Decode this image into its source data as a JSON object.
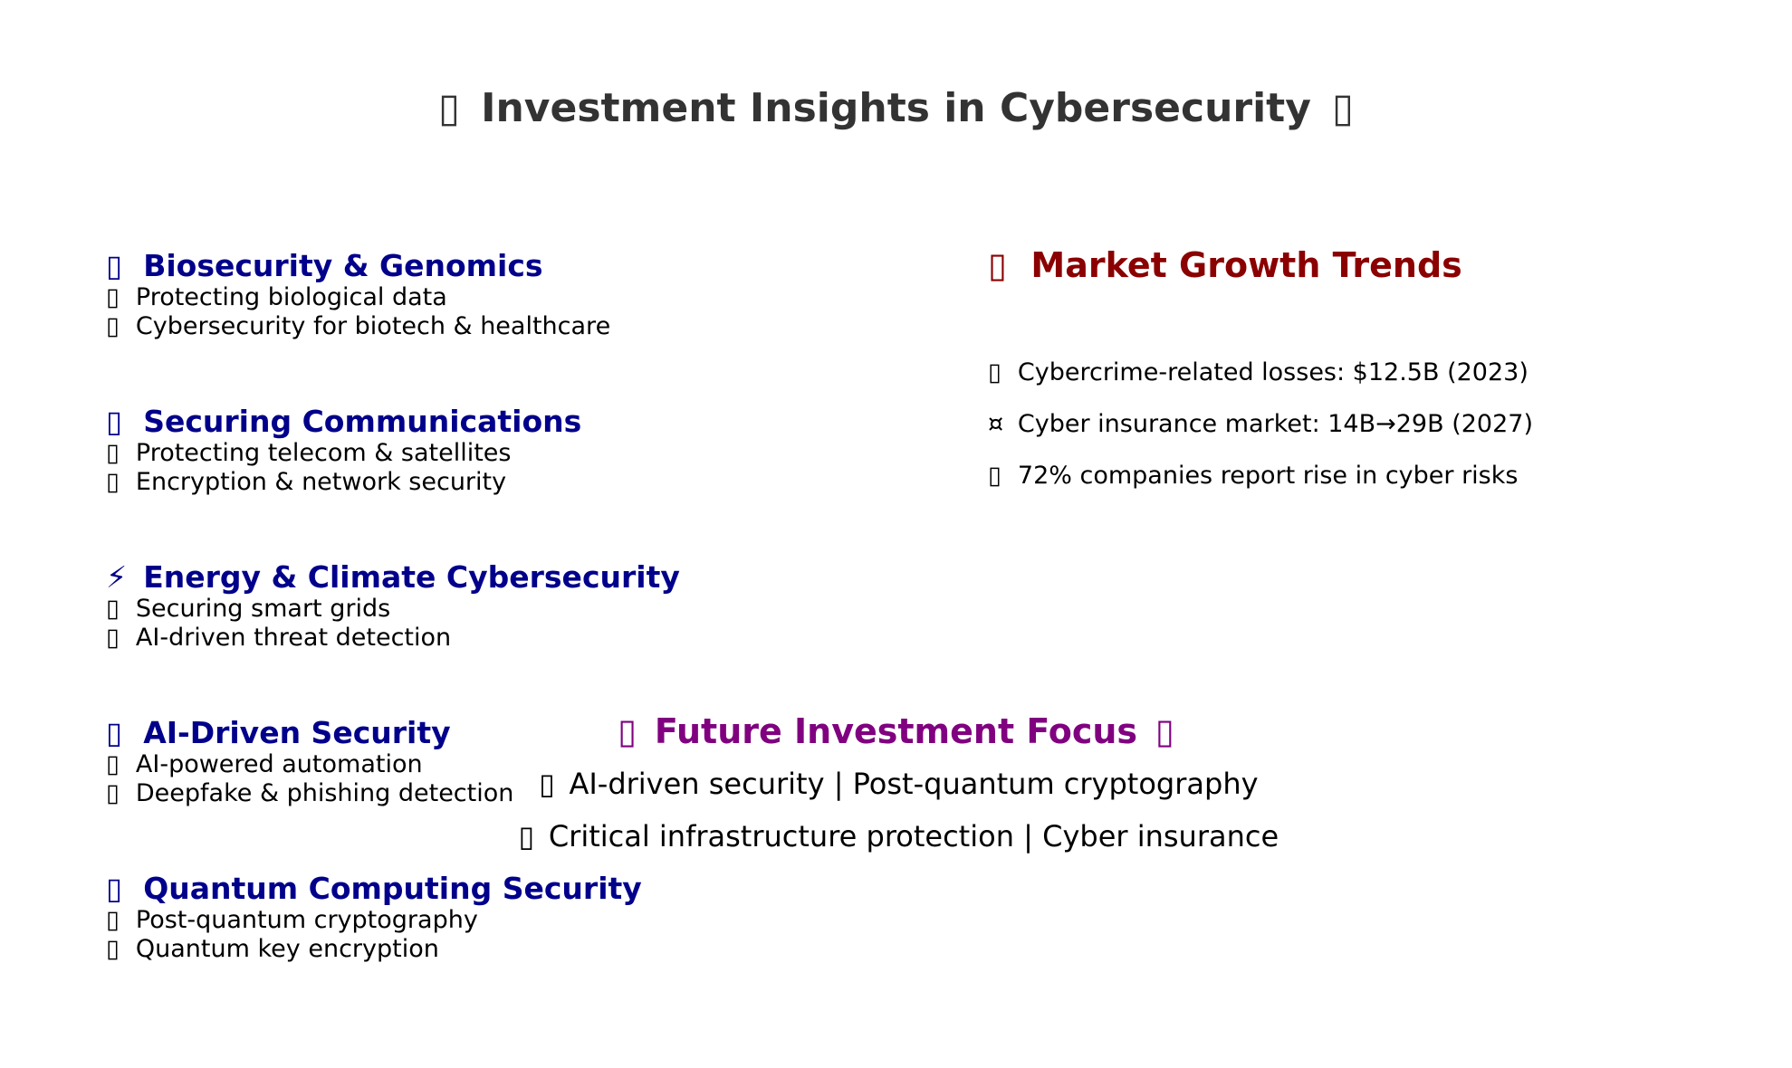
{
  "title": {
    "icon_left": "▯",
    "text": "Investment Insights in Cybersecurity",
    "icon_right": "▯"
  },
  "sections": [
    {
      "icon": "▯",
      "heading": "Biosecurity & Genomics",
      "items": [
        {
          "icon": "▯",
          "text": "Protecting biological data"
        },
        {
          "icon": "▯",
          "text": "Cybersecurity for biotech & healthcare"
        }
      ]
    },
    {
      "icon": "▯",
      "heading": "Securing Communications",
      "items": [
        {
          "icon": "▯",
          "text": "Protecting telecom & satellites"
        },
        {
          "icon": "▯",
          "text": "Encryption & network security"
        }
      ]
    },
    {
      "icon": "⚡",
      "heading": "Energy & Climate Cybersecurity",
      "items": [
        {
          "icon": "▯",
          "text": "Securing smart grids"
        },
        {
          "icon": "▯",
          "text": "AI-driven threat detection"
        }
      ]
    },
    {
      "icon": "▯",
      "heading": "AI-Driven Security",
      "items": [
        {
          "icon": "▯",
          "text": "AI-powered automation"
        },
        {
          "icon": "▯",
          "text": "Deepfake & phishing detection"
        }
      ]
    },
    {
      "icon": "▯",
      "heading": "Quantum Computing Security",
      "items": [
        {
          "icon": "▯",
          "text": "Post-quantum cryptography"
        },
        {
          "icon": "▯",
          "text": "Quantum key encryption"
        }
      ]
    }
  ],
  "market": {
    "icon": "▯",
    "title": "Market Growth Trends",
    "items": [
      {
        "icon": "▯",
        "text": "Cybercrime-related losses: $12.5B (2023)"
      },
      {
        "icon": "¤",
        "text": "Cyber insurance market: 14B→29B (2027)"
      },
      {
        "icon": "▯",
        "text": "72% companies report rise in cyber risks"
      }
    ]
  },
  "future": {
    "icon_left": "▯",
    "title": "Future Investment Focus",
    "icon_right": "▯",
    "lines": [
      {
        "icon": "▯",
        "text": "AI-driven security | Post-quantum cryptography"
      },
      {
        "icon": "▯",
        "text": "Critical infrastructure protection | Cyber insurance"
      }
    ]
  },
  "colors": {
    "title": "#333333",
    "section_heading": "#00008b",
    "market_title": "#8b0000",
    "future_title": "#800080",
    "body_text": "#000000"
  }
}
